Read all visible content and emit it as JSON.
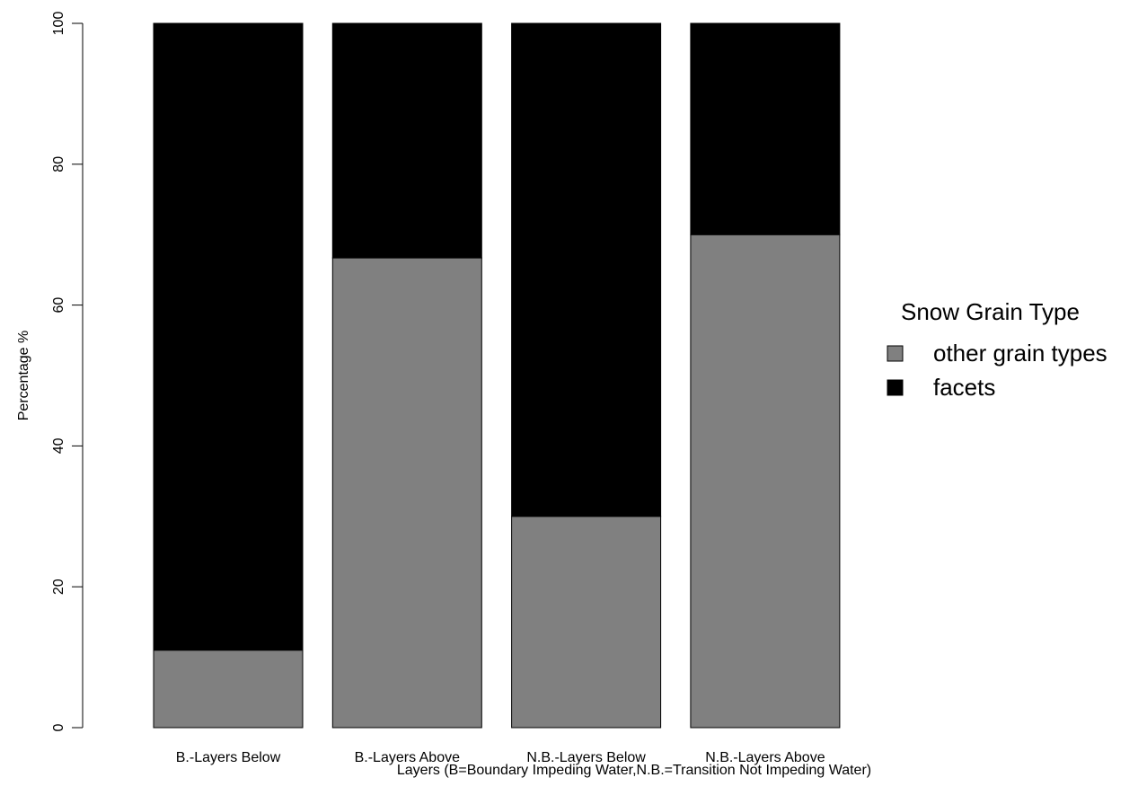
{
  "chart_data": {
    "type": "bar",
    "stacked": true,
    "categories": [
      "B.-Layers Below",
      "B.-Layers Above",
      "N.B.-Layers Below",
      "N.B.-Layers Above"
    ],
    "series": [
      {
        "name": "other grain types",
        "values": [
          11,
          66.7,
          30,
          70
        ],
        "color": "#808080"
      },
      {
        "name": "facets",
        "values": [
          89,
          33.3,
          70,
          30
        ],
        "color": "#000000"
      }
    ],
    "title": "",
    "xlabel": "Layers (B=Boundary Impeding Water,N.B.=Transition Not Impeding Water)",
    "ylabel": "Percentage %",
    "ylim": [
      0,
      100
    ],
    "yticks": [
      "0",
      "20",
      "40",
      "60",
      "80",
      "100"
    ],
    "grid": false,
    "legend": {
      "title": "Snow Grain Type",
      "position": "right",
      "entries": [
        "other grain types",
        "facets"
      ]
    }
  }
}
